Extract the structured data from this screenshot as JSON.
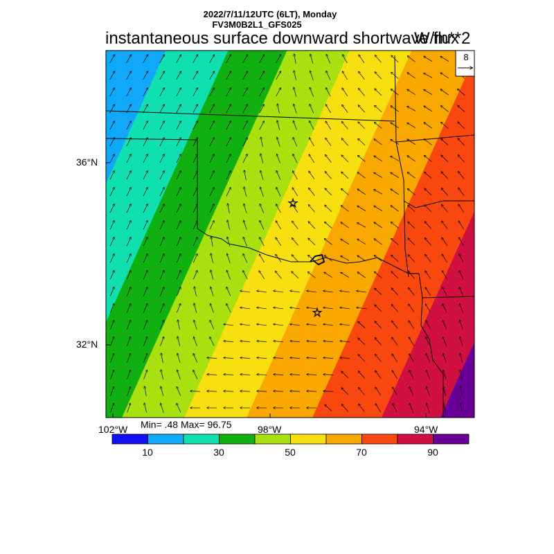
{
  "header": {
    "line1": "2022/7/11/12UTC (6LT), Monday",
    "line2": "FV3M0B2L1_GFS025"
  },
  "title": "instantaneous surface downward shortwave flux",
  "units": "W/m**2",
  "ref_vector": {
    "label": "8"
  },
  "axes": {
    "lat_ticks": [
      "36°N",
      "32°N"
    ],
    "lon_ticks": [
      "102°W",
      "98°W",
      "94°W"
    ]
  },
  "stats": {
    "text": "Min= .48 Max= 96.75"
  },
  "colorbar": {
    "colors": [
      "#1010f0",
      "#10a8f8",
      "#10e0b0",
      "#10b010",
      "#a8e010",
      "#f8e010",
      "#f8a800",
      "#f84810",
      "#d01040",
      "#680098"
    ],
    "tick_labels": [
      "10",
      "30",
      "50",
      "70",
      "90"
    ]
  }
}
